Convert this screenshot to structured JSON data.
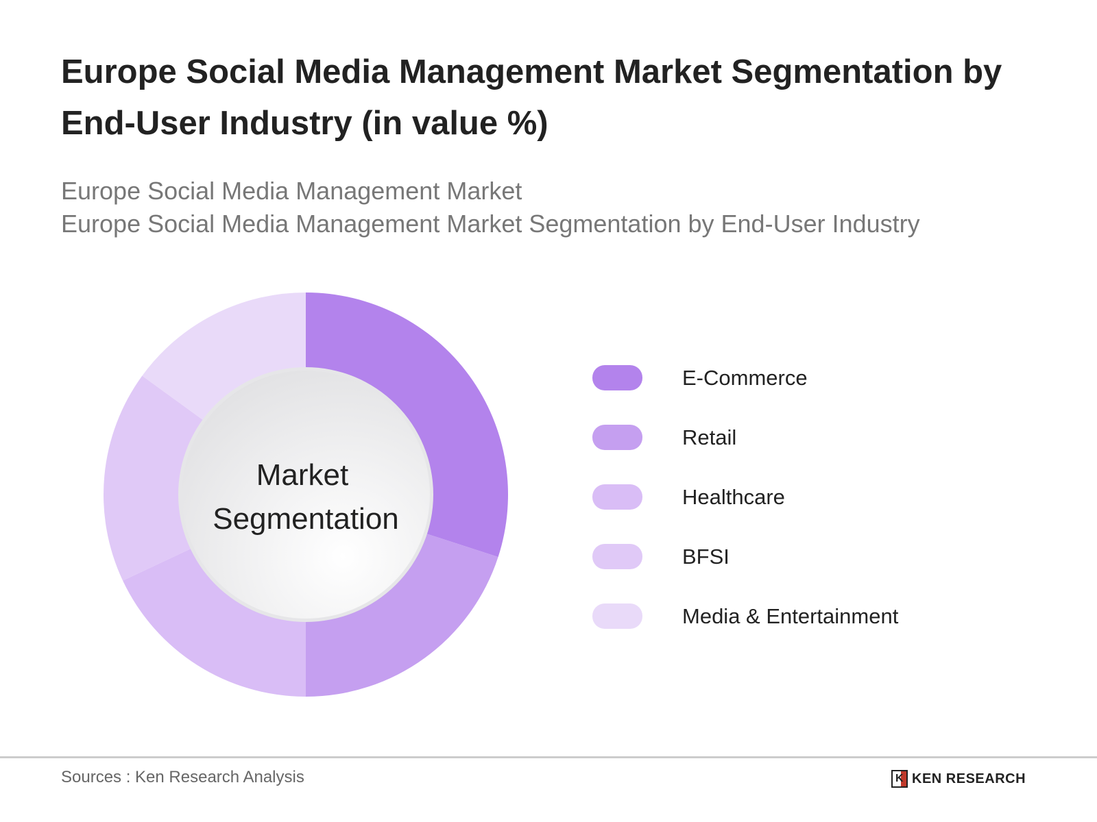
{
  "title": "Europe Social Media Management Market Segmentation by End-User Industry (in value %)",
  "subtitle_1": "Europe Social Media Management Market",
  "subtitle_2": "Europe Social Media Management Market Segmentation by End-User Industry",
  "chart_data": {
    "type": "pie",
    "variant": "donut",
    "center_label_1": "Market",
    "center_label_2": "Segmentation",
    "categories": [
      "E-Commerce",
      "Retail",
      "Healthcare",
      "BFSI",
      "Media & Entertainment"
    ],
    "values": [
      30,
      20,
      18,
      17,
      15
    ],
    "colors": [
      "#b383ec",
      "#c59ff0",
      "#d9bdf6",
      "#e0c9f7",
      "#e9daf9"
    ],
    "legend_position": "right"
  },
  "footer": {
    "source": "Sources : Ken Research Analysis",
    "logo_text": "KEN RESEARCH"
  }
}
